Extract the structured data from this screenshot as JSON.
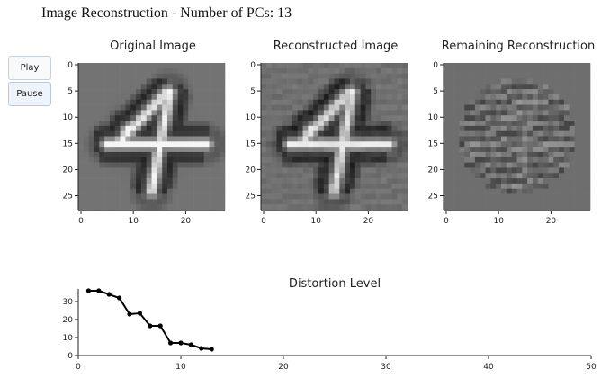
{
  "header": {
    "title": "Image Reconstruction - Number of PCs: 13"
  },
  "controls": {
    "play_label": "Play",
    "pause_label": "Pause"
  },
  "colors": {
    "background": "#ffffff",
    "axis": "#222222",
    "line": "#000000",
    "button_border": "#c9d0d6"
  },
  "panels": [
    {
      "title": "Original Image",
      "xticks": [
        "0",
        "10",
        "20"
      ],
      "yticks": [
        "0",
        "5",
        "10",
        "15",
        "20",
        "25"
      ],
      "variant": "original"
    },
    {
      "title": "Reconstructed Image",
      "xticks": [
        "0",
        "10",
        "20"
      ],
      "yticks": [
        "0",
        "5",
        "10",
        "15",
        "20",
        "25"
      ],
      "variant": "reconstructed"
    },
    {
      "title": "Remaining Reconstruction",
      "xticks": [
        "0",
        "10",
        "20"
      ],
      "yticks": [
        "0",
        "5",
        "10",
        "15",
        "20",
        "25"
      ],
      "variant": "residual"
    }
  ],
  "chart_data": [
    {
      "type": "heatmap",
      "title": "Original Image",
      "xlim": [
        0,
        27
      ],
      "ylim": [
        0,
        27
      ],
      "content": "handwritten digit 4, 28x28 grayscale"
    },
    {
      "type": "heatmap",
      "title": "Reconstructed Image",
      "xlim": [
        0,
        27
      ],
      "ylim": [
        0,
        27
      ],
      "content": "reconstruction of digit 4 using 13 principal components"
    },
    {
      "type": "heatmap",
      "title": "Remaining Reconstruction",
      "xlim": [
        0,
        27
      ],
      "ylim": [
        0,
        27
      ],
      "content": "residual between original and reconstruction"
    },
    {
      "type": "line",
      "title": "Distortion Level",
      "xlabel": "",
      "ylabel": "",
      "xlim": [
        0,
        50
      ],
      "ylim": [
        0,
        37
      ],
      "xticks": [
        "0",
        "10",
        "20",
        "30",
        "40",
        "50"
      ],
      "yticks": [
        "0",
        "10",
        "20",
        "30"
      ],
      "x": [
        1,
        2,
        3,
        4,
        5,
        6,
        7,
        8,
        9,
        10,
        11,
        12,
        13
      ],
      "y": [
        36,
        36,
        34,
        32,
        23,
        23.5,
        16.5,
        16.5,
        7,
        7,
        6,
        4,
        3.5
      ]
    }
  ]
}
